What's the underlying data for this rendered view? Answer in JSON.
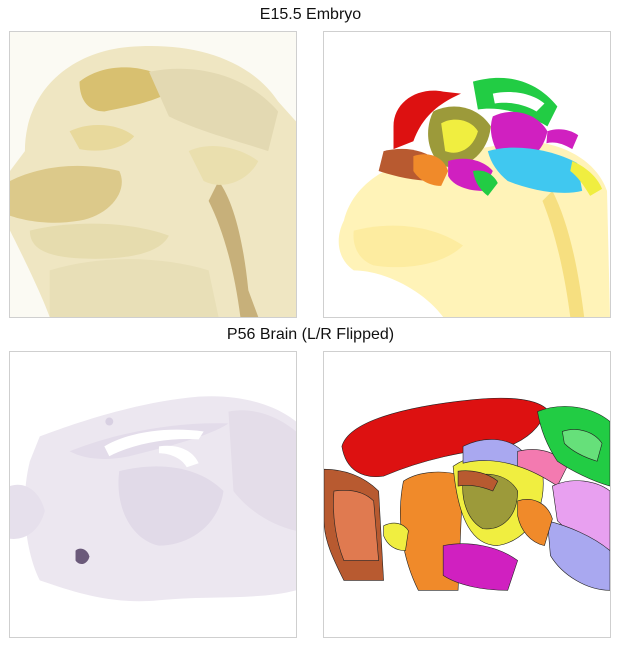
{
  "sections": [
    {
      "title": "E15.5 Embryo"
    },
    {
      "title": "P56 Brain (L/R Flipped)"
    }
  ],
  "panels": [
    {
      "kind": "photo",
      "subject": "E15.5 embryo ISH section",
      "tint": "#d9c27a"
    },
    {
      "kind": "atlas",
      "subject": "E15.5 embryo annotated atlas"
    },
    {
      "kind": "photo",
      "subject": "P56 brain ISH section",
      "tint": "#c9c0d2"
    },
    {
      "kind": "atlas",
      "subject": "P56 brain annotated atlas"
    }
  ],
  "colors": {
    "cortex_red": "#dd1111",
    "green": "#22cc44",
    "olive": "#9c9a3a",
    "yellow": "#f0ee40",
    "magenta": "#d020c0",
    "orange": "#f08a2a",
    "brown": "#b85a30",
    "lavender": "#a9a8f0",
    "pink": "#f37ab0",
    "cyan": "#40c8f0"
  }
}
